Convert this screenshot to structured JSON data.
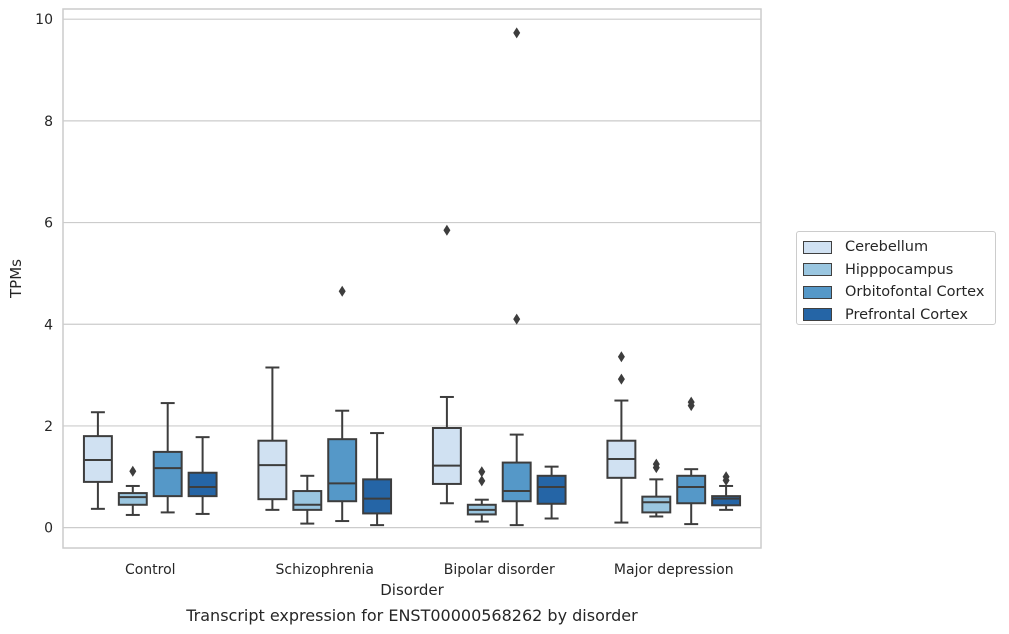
{
  "chart_data": {
    "type": "box",
    "xlabel": "Disorder",
    "ylabel": "TPMs",
    "caption": "Transcript expression for ENST00000568262 by disorder",
    "categories": [
      "Control",
      "Schizophrenia",
      "Bipolar disorder",
      "Major depression"
    ],
    "ylim": [
      -0.4,
      10.2
    ],
    "yticks": [
      "0",
      "2",
      "4",
      "6",
      "8",
      "10"
    ],
    "grid": "horizontal",
    "legend_position": "right",
    "series": [
      {
        "name": "Cerebellum",
        "color": "#d0e1f2",
        "boxes": [
          {
            "whislo": 0.37,
            "q1": 0.9,
            "med": 1.33,
            "q3": 1.8,
            "whishi": 2.27,
            "fliers": []
          },
          {
            "whislo": 0.35,
            "q1": 0.56,
            "med": 1.23,
            "q3": 1.71,
            "whishi": 3.15,
            "fliers": []
          },
          {
            "whislo": 0.48,
            "q1": 0.86,
            "med": 1.22,
            "q3": 1.96,
            "whishi": 2.57,
            "fliers": [
              5.85
            ]
          },
          {
            "whislo": 0.1,
            "q1": 0.98,
            "med": 1.35,
            "q3": 1.71,
            "whishi": 2.5,
            "fliers": [
              2.92,
              3.36
            ]
          }
        ]
      },
      {
        "name": "Hipppocampus",
        "color": "#9ac6e0",
        "boxes": [
          {
            "whislo": 0.25,
            "q1": 0.45,
            "med": 0.6,
            "q3": 0.68,
            "whishi": 0.82,
            "fliers": [
              1.11
            ]
          },
          {
            "whislo": 0.08,
            "q1": 0.35,
            "med": 0.45,
            "q3": 0.72,
            "whishi": 1.02,
            "fliers": []
          },
          {
            "whislo": 0.12,
            "q1": 0.26,
            "med": 0.35,
            "q3": 0.45,
            "whishi": 0.55,
            "fliers": [
              0.92,
              1.1
            ]
          },
          {
            "whislo": 0.22,
            "q1": 0.3,
            "med": 0.5,
            "q3": 0.61,
            "whishi": 0.95,
            "fliers": [
              1.18,
              1.25
            ]
          }
        ]
      },
      {
        "name": "Orbitofontal Cortex",
        "color": "#5598c8",
        "boxes": [
          {
            "whislo": 0.3,
            "q1": 0.62,
            "med": 1.17,
            "q3": 1.49,
            "whishi": 2.45,
            "fliers": []
          },
          {
            "whislo": 0.13,
            "q1": 0.52,
            "med": 0.87,
            "q3": 1.74,
            "whishi": 2.3,
            "fliers": [
              4.65
            ]
          },
          {
            "whislo": 0.05,
            "q1": 0.52,
            "med": 0.72,
            "q3": 1.28,
            "whishi": 1.83,
            "fliers": [
              4.1,
              9.73
            ]
          },
          {
            "whislo": 0.07,
            "q1": 0.48,
            "med": 0.8,
            "q3": 1.02,
            "whishi": 1.15,
            "fliers": [
              2.4,
              2.47
            ]
          }
        ]
      },
      {
        "name": "Prefrontal Cortex",
        "color": "#2565a6",
        "boxes": [
          {
            "whislo": 0.27,
            "q1": 0.62,
            "med": 0.8,
            "q3": 1.08,
            "whishi": 1.78,
            "fliers": []
          },
          {
            "whislo": 0.05,
            "q1": 0.28,
            "med": 0.57,
            "q3": 0.95,
            "whishi": 1.86,
            "fliers": []
          },
          {
            "whislo": 0.18,
            "q1": 0.47,
            "med": 0.8,
            "q3": 1.02,
            "whishi": 1.2,
            "fliers": []
          },
          {
            "whislo": 0.35,
            "q1": 0.44,
            "med": 0.57,
            "q3": 0.62,
            "whishi": 0.82,
            "fliers": [
              0.93,
              1.0
            ]
          }
        ]
      }
    ]
  }
}
